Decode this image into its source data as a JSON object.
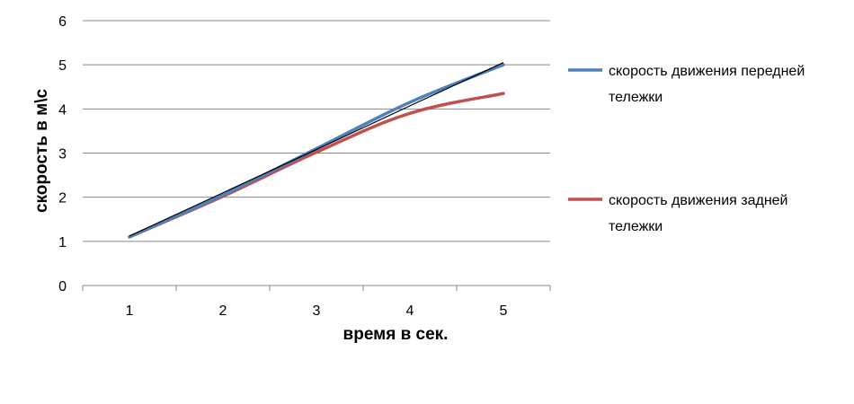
{
  "chart_data": {
    "type": "line",
    "categories": [
      "1",
      "2",
      "3",
      "4",
      "5"
    ],
    "x": [
      1,
      2,
      3,
      4,
      5
    ],
    "series": [
      {
        "name": "скорость движения передней тележки",
        "legend_lines": [
          "скорость движения передней",
          "тележки"
        ],
        "values": [
          1.1,
          2.05,
          3.1,
          4.15,
          5.0
        ],
        "color": "#4F81BD"
      },
      {
        "name": "скорость движения задней тележки",
        "legend_lines": [
          "скорость движения задней",
          "тележки"
        ],
        "values": [
          1.1,
          2.02,
          3.02,
          3.9,
          4.35
        ],
        "color": "#C0504D"
      }
    ],
    "trendline": {
      "values": [
        1.12,
        2.1,
        3.08,
        4.07,
        5.05
      ],
      "color": "#000000"
    },
    "yticks": [
      "0",
      "1",
      "2",
      "3",
      "4",
      "5",
      "6"
    ],
    "ylim": [
      0,
      6
    ],
    "xlabel": "время в сек.",
    "ylabel": "скорость в м\\с",
    "grid": "horizontal",
    "legend_position": "right"
  }
}
